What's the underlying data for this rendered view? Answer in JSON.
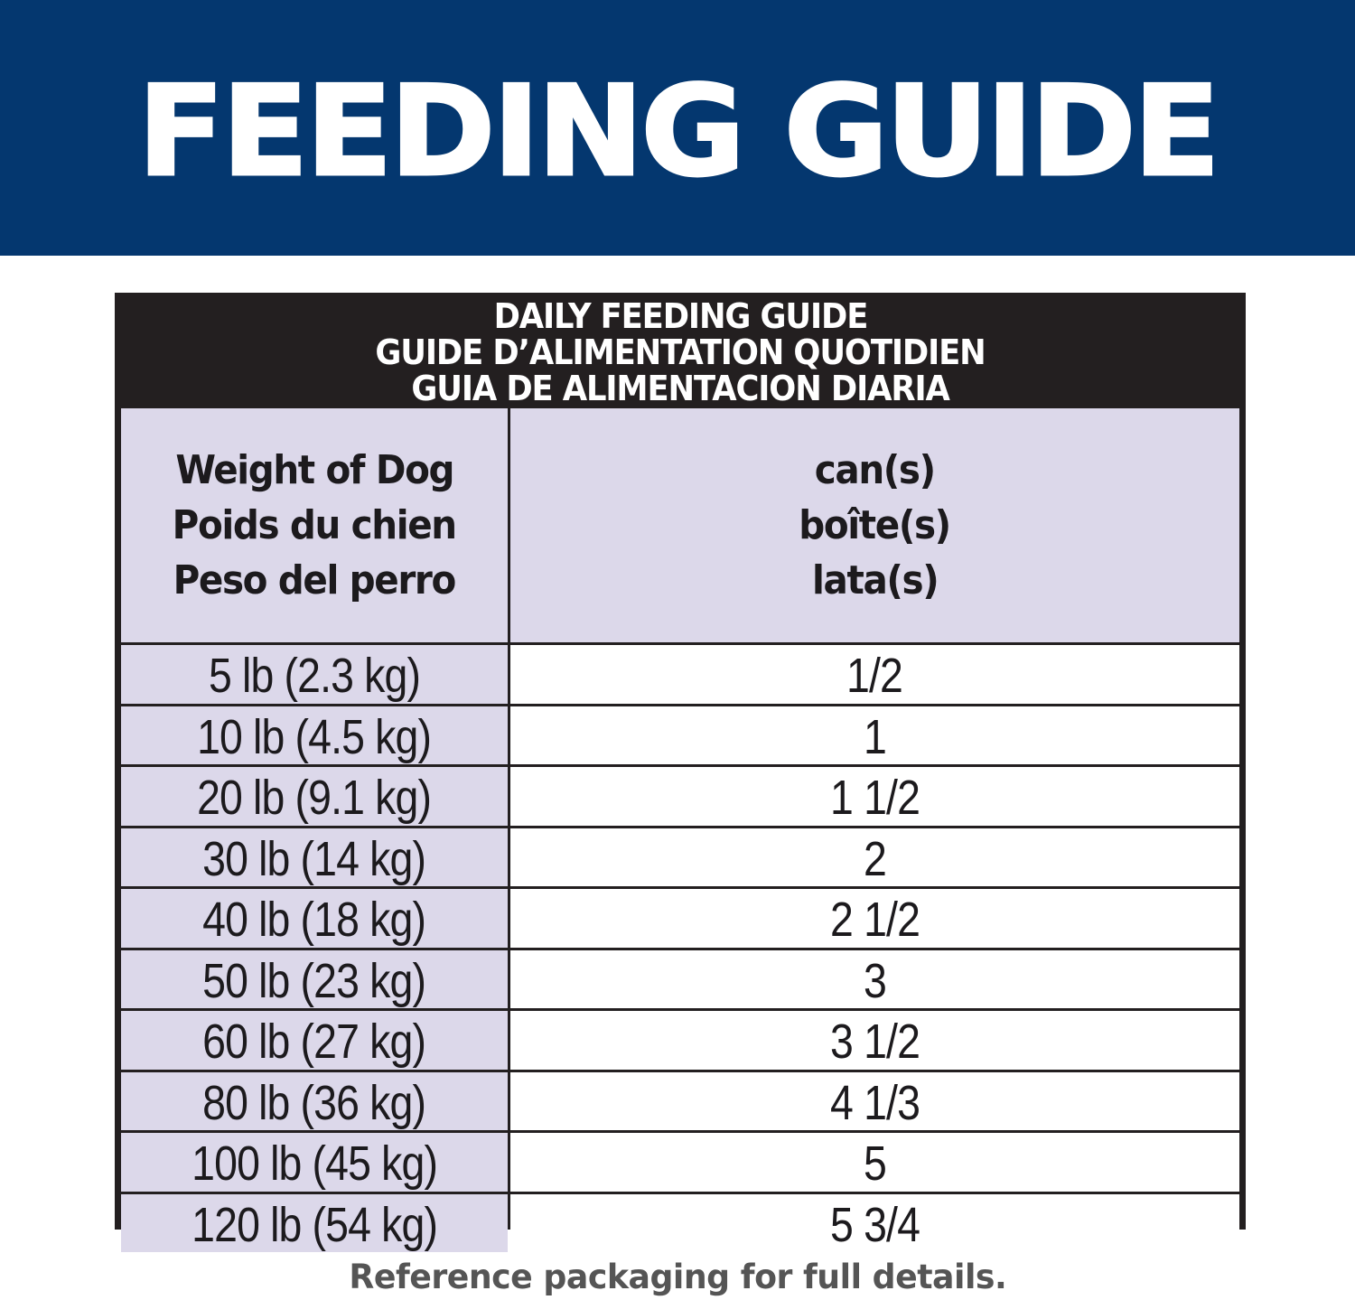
{
  "banner": {
    "title": "FEEDING GUIDE",
    "background_color": "#04376f"
  },
  "table": {
    "title_lines": [
      "DAILY FEEDING GUIDE",
      "GUIDE D’ALIMENTATION QUOTIDIEN",
      "GUIA DE ALIMENTACION DIARIA"
    ],
    "title_background": "#231f20",
    "header_background": "#dcd8ea",
    "columns": [
      {
        "lines": [
          "Weight of Dog",
          "Poids du chien",
          "Peso del perro"
        ]
      },
      {
        "lines": [
          "can(s)",
          "boîte(s)",
          "lata(s)"
        ]
      }
    ],
    "rows": [
      {
        "weight": "5 lb (2.3 kg)",
        "cans": "1/2"
      },
      {
        "weight": "10 lb (4.5 kg)",
        "cans": "1"
      },
      {
        "weight": "20 lb (9.1 kg)",
        "cans": "1 1/2"
      },
      {
        "weight": "30 lb (14 kg)",
        "cans": "2"
      },
      {
        "weight": "40 lb (18 kg)",
        "cans": "2 1/2"
      },
      {
        "weight": "50 lb (23 kg)",
        "cans": "3"
      },
      {
        "weight": "60 lb (27 kg)",
        "cans": "3 1/2"
      },
      {
        "weight": "80 lb (36 kg)",
        "cans": "4 1/3"
      },
      {
        "weight": "100 lb (45 kg)",
        "cans": "5"
      },
      {
        "weight": "120 lb (54 kg)",
        "cans": "5 3/4"
      }
    ]
  },
  "footer": {
    "note": "Reference packaging for full details."
  }
}
